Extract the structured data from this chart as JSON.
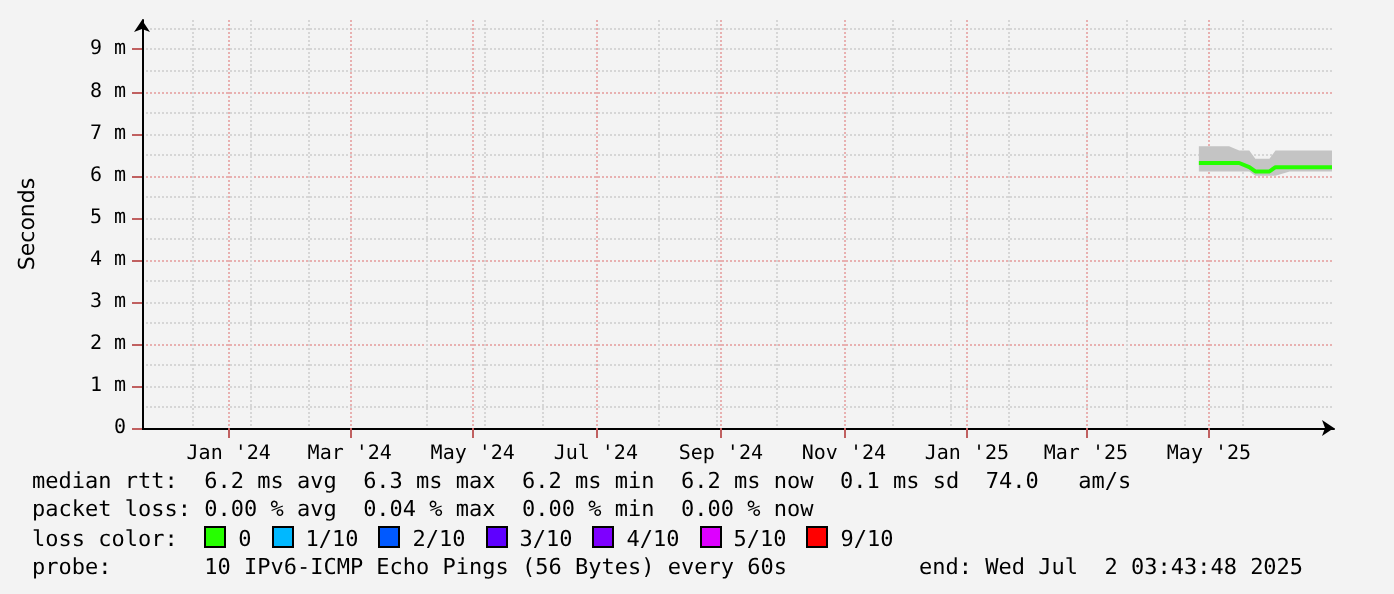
{
  "chart_data": {
    "type": "line",
    "ylabel": "Seconds",
    "legend_title": "loss color:",
    "legend": "bottom",
    "grid": true,
    "marker": "none",
    "xlim": [
      "2023-11-19",
      "2025-07-02"
    ],
    "xticks": [
      {
        "value": "2024-01-01",
        "label": "Jan '24"
      },
      {
        "value": "2024-03-01",
        "label": "Mar '24"
      },
      {
        "value": "2024-05-01",
        "label": "May '24"
      },
      {
        "value": "2024-07-01",
        "label": "Jul '24"
      },
      {
        "value": "2024-09-01",
        "label": "Sep '24"
      },
      {
        "value": "2024-11-01",
        "label": "Nov '24"
      },
      {
        "value": "2025-01-01",
        "label": "Jan '25"
      },
      {
        "value": "2025-03-01",
        "label": "Mar '25"
      },
      {
        "value": "2025-05-01",
        "label": "May '25"
      }
    ],
    "ylim": [
      0,
      9.7
    ],
    "yticks": [
      0,
      {
        "value": 1,
        "label": "1 m"
      },
      {
        "value": 2,
        "label": "2 m"
      },
      {
        "value": 3,
        "label": "3 m"
      },
      {
        "value": 4,
        "label": "4 m"
      },
      {
        "value": 5,
        "label": "5 m"
      },
      {
        "value": 6,
        "label": "6 m"
      },
      {
        "value": 7,
        "label": "7 m"
      },
      {
        "value": 8,
        "label": "8 m"
      },
      {
        "value": 9,
        "label": "9 m"
      }
    ],
    "x": [
      "2025-04-26",
      "2025-05-01",
      "2025-05-06",
      "2025-05-11",
      "2025-05-16",
      "2025-05-21",
      "2025-05-24",
      "2025-05-31",
      "2025-06-03",
      "2025-06-10",
      "2025-06-20",
      "2025-07-01"
    ],
    "series": [
      {
        "name": "0",
        "color": "#26ff00",
        "values": [
          6.3,
          6.3,
          6.3,
          6.3,
          6.3,
          6.2,
          6.1,
          6.1,
          6.2,
          6.2,
          6.2,
          6.2
        ],
        "lower": [
          6.1,
          6.1,
          6.1,
          6.1,
          6.1,
          6.1,
          6.0,
          6.0,
          6.0,
          6.1,
          6.1,
          6.1
        ],
        "upper": [
          6.7,
          6.7,
          6.7,
          6.7,
          6.6,
          6.6,
          6.4,
          6.4,
          6.6,
          6.6,
          6.6,
          6.6
        ]
      },
      {
        "name": "1/10",
        "color": "#00b8ff",
        "values": [
          null,
          null,
          null,
          null,
          null,
          null,
          null,
          null,
          null,
          null,
          null,
          null
        ]
      },
      {
        "name": "2/10",
        "color": "#0059ff",
        "values": [
          null,
          null,
          null,
          null,
          null,
          null,
          null,
          null,
          null,
          null,
          null,
          null
        ]
      },
      {
        "name": "3/10",
        "color": "#5e00ff",
        "values": [
          null,
          null,
          null,
          null,
          null,
          null,
          null,
          null,
          null,
          null,
          null,
          null
        ]
      },
      {
        "name": "4/10",
        "color": "#7e00ff",
        "values": [
          null,
          null,
          null,
          null,
          null,
          null,
          null,
          null,
          null,
          null,
          null,
          null
        ]
      },
      {
        "name": "5/10",
        "color": "#dd00ff",
        "values": [
          null,
          null,
          null,
          null,
          null,
          null,
          null,
          null,
          null,
          null,
          null,
          null
        ]
      },
      {
        "name": "9/10",
        "color": "#ff0000",
        "values": [
          null,
          null,
          null,
          null,
          null,
          null,
          null,
          null,
          null,
          null,
          null,
          null
        ]
      }
    ],
    "annotations": [
      "median rtt:  6.2 ms avg  6.3 ms max  6.2 ms min  6.2 ms now  0.1 ms sd  74.0   am/s",
      "packet loss: 0.00 % avg  0.04 % max  0.00 % min  0.00 % now",
      "probe:       10 IPv6-ICMP Echo Pings (56 Bytes) every 60s",
      "end: Wed Jul  2 03:43:48 2025"
    ]
  }
}
